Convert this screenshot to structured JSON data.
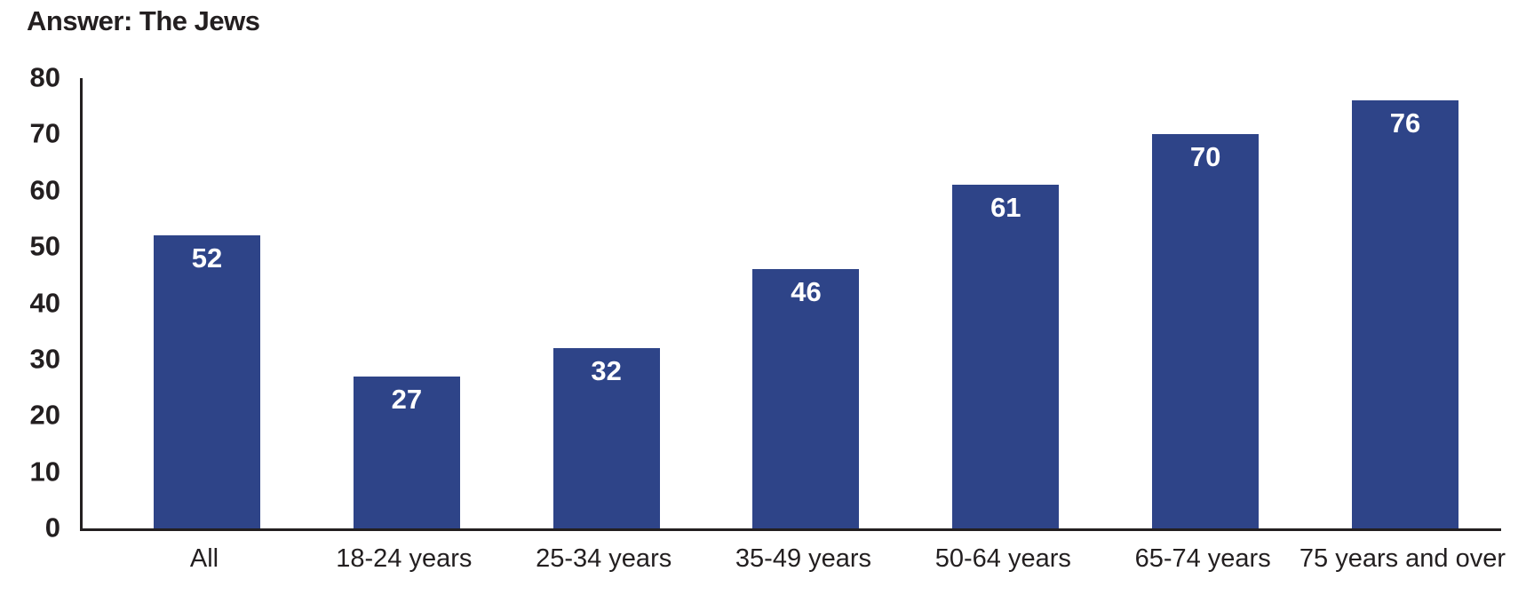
{
  "title": "Answer: The Jews",
  "colors": {
    "bar": "#2e4488",
    "axis": "#231f20",
    "text": "#231f20",
    "bar_label": "#ffffff",
    "background": "#ffffff"
  },
  "chart_data": {
    "type": "bar",
    "title": "Answer: The Jews",
    "categories": [
      "All",
      "18-24 years",
      "25-34 years",
      "35-49 years",
      "50-64 years",
      "65-74 years",
      "75 years and over"
    ],
    "values": [
      52,
      27,
      32,
      46,
      61,
      70,
      76
    ],
    "xlabel": "",
    "ylabel": "",
    "ylim": [
      0,
      80
    ],
    "yticks": [
      0,
      10,
      20,
      30,
      40,
      50,
      60,
      70,
      80
    ],
    "grid": false,
    "legend_position": "none",
    "bar_value_labels": "inside-top, white, bold"
  }
}
